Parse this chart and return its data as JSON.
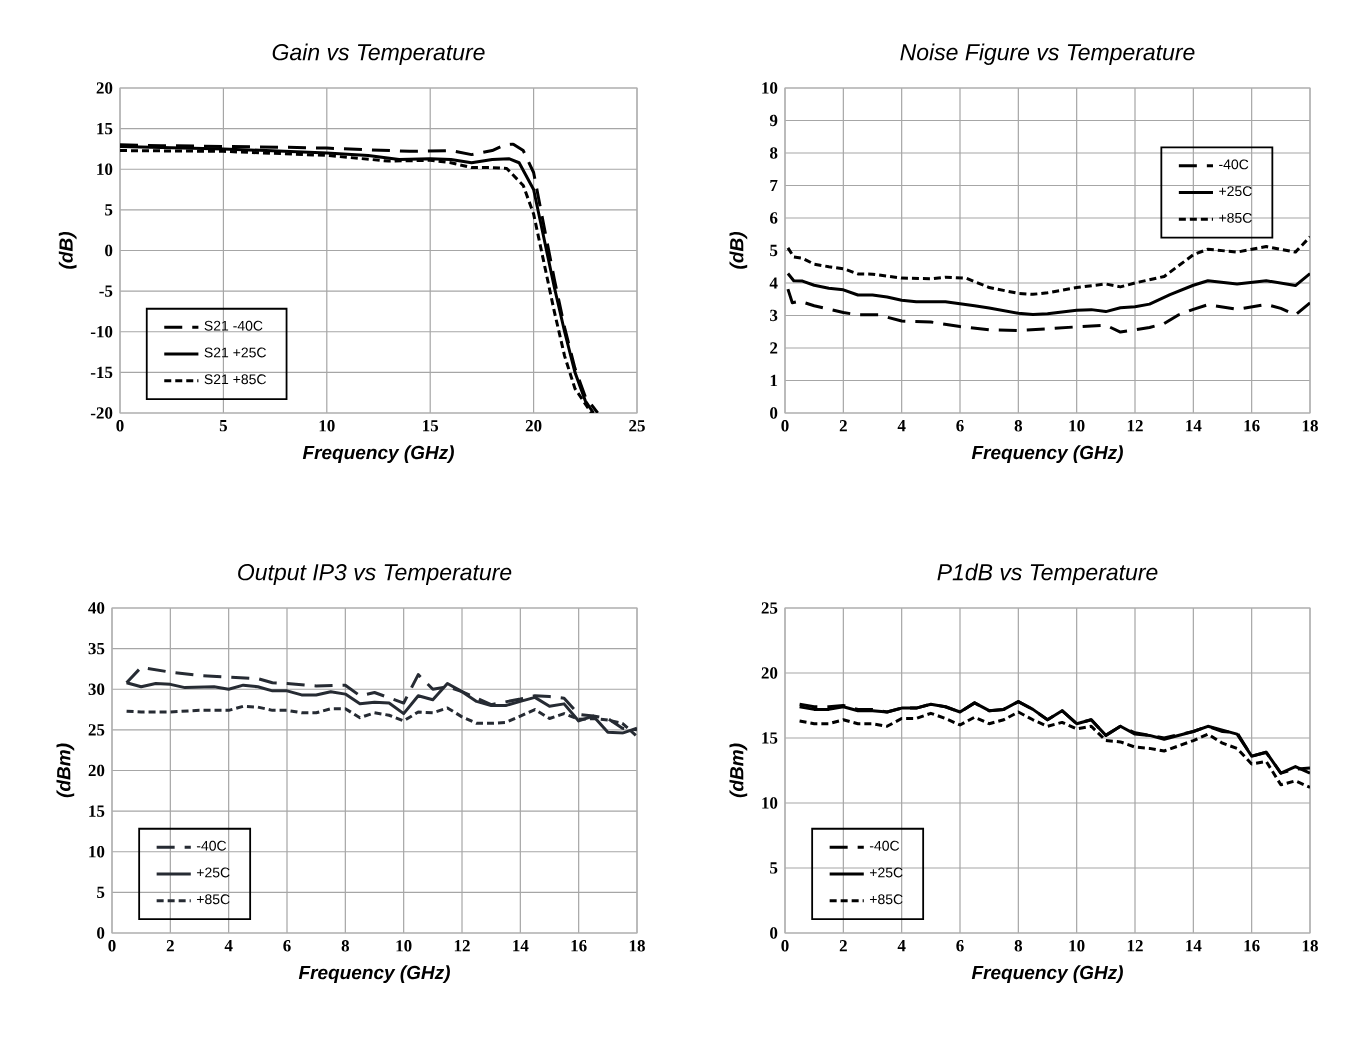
{
  "chart_data": [
    {
      "type": "line",
      "title": "Gain vs Temperature",
      "xlabel": "Frequency (GHz)",
      "ylabel": "(dB)",
      "xlim": [
        0,
        25
      ],
      "ylim": [
        -20,
        20
      ],
      "xticks": [
        0,
        5,
        10,
        15,
        20,
        25
      ],
      "yticks": [
        -20,
        -15,
        -10,
        -5,
        0,
        5,
        10,
        15,
        20
      ],
      "grid": true,
      "legend": "bottom left",
      "marker": "none",
      "series": [
        {
          "name": "S21 -40C",
          "color": "#000000",
          "line_style": "dashed",
          "x": [
            0,
            2,
            5,
            8,
            10,
            12,
            14,
            16,
            17,
            18,
            18.6,
            19,
            19.5,
            20,
            20.5,
            21,
            21.5,
            22,
            22.5,
            23.1
          ],
          "values": [
            13,
            12.9,
            12.8,
            12.7,
            12.6,
            12.4,
            12.2,
            12.3,
            11.8,
            12.3,
            13.0,
            13.1,
            12.3,
            9.6,
            3,
            -3.5,
            -9.5,
            -14.5,
            -18,
            -20
          ]
        },
        {
          "name": "S21 +25C",
          "color": "#000000",
          "line_style": "solid",
          "x": [
            0,
            5,
            10,
            12,
            13.5,
            15,
            16,
            17,
            18,
            18.8,
            19.3,
            20,
            20.5,
            21,
            21.5,
            22,
            22.5,
            22.9
          ],
          "values": [
            12.8,
            12.5,
            12.0,
            11.7,
            11.2,
            11.3,
            11.2,
            10.8,
            11.2,
            11.3,
            10.8,
            7.5,
            1.5,
            -4.5,
            -10,
            -15,
            -18.5,
            -20
          ]
        },
        {
          "name": "S21 +85C",
          "color": "#000000",
          "line_style": "dotted",
          "x": [
            0,
            5,
            10,
            13,
            15,
            16,
            17,
            18,
            18.7,
            19.5,
            20,
            20.5,
            21,
            21.5,
            22,
            22.8
          ],
          "values": [
            12.3,
            12.2,
            11.7,
            11.0,
            11.1,
            10.8,
            10.2,
            10.2,
            10.1,
            8.0,
            4.5,
            -1.5,
            -7.5,
            -13,
            -17,
            -20
          ]
        }
      ]
    },
    {
      "type": "line",
      "title": "Noise Figure vs Temperature",
      "xlabel": "Frequency (GHz)",
      "ylabel": "(dB)",
      "xlim": [
        0,
        18
      ],
      "ylim": [
        0,
        10
      ],
      "xticks": [
        0,
        2,
        4,
        6,
        8,
        10,
        12,
        14,
        16,
        18
      ],
      "yticks": [
        0,
        1,
        2,
        3,
        4,
        5,
        6,
        7,
        8,
        9,
        10
      ],
      "grid": true,
      "legend": "top right",
      "marker": "none",
      "series": [
        {
          "name": "-40C",
          "color": "#000000",
          "line_style": "dashed",
          "x": [
            0.1,
            0.25,
            0.5,
            1,
            2,
            2.5,
            3.2,
            4,
            5,
            6,
            7,
            8,
            9,
            10,
            11,
            11.5,
            12.5,
            13,
            13.5,
            14,
            14.5,
            15.5,
            16.5,
            17,
            17.5,
            18
          ],
          "values": [
            3.81,
            3.39,
            3.44,
            3.3,
            3.09,
            3.02,
            3.02,
            2.83,
            2.8,
            2.66,
            2.56,
            2.54,
            2.59,
            2.65,
            2.7,
            2.49,
            2.63,
            2.75,
            3.02,
            3.19,
            3.33,
            3.19,
            3.34,
            3.22,
            3.02,
            3.39
          ]
        },
        {
          "name": "+25C",
          "color": "#000000",
          "line_style": "solid",
          "x": [
            0.1,
            0.3,
            0.6,
            1,
            1.5,
            2,
            2.5,
            3,
            3.5,
            4,
            4.5,
            5.5,
            6.5,
            7,
            8,
            8.5,
            9,
            10,
            10.5,
            11,
            11.5,
            12,
            12.5,
            13.2,
            14,
            14.5,
            15.5,
            16.5,
            17.5,
            18
          ],
          "values": [
            4.29,
            4.07,
            4.06,
            3.93,
            3.84,
            3.79,
            3.63,
            3.63,
            3.57,
            3.47,
            3.42,
            3.42,
            3.3,
            3.23,
            3.07,
            3.03,
            3.05,
            3.16,
            3.18,
            3.12,
            3.24,
            3.27,
            3.35,
            3.64,
            3.93,
            4.07,
            3.97,
            4.07,
            3.92,
            4.29
          ]
        },
        {
          "name": "+85C",
          "color": "#000000",
          "line_style": "dotted",
          "x": [
            0.1,
            0.3,
            0.6,
            1,
            1.5,
            2,
            2.5,
            3,
            4,
            5,
            5.5,
            6.2,
            7,
            8,
            8.5,
            9,
            10,
            11,
            11.5,
            12,
            13,
            14,
            14.5,
            15.5,
            16.5,
            17.5,
            18
          ],
          "values": [
            5.08,
            4.8,
            4.76,
            4.58,
            4.5,
            4.44,
            4.28,
            4.27,
            4.15,
            4.13,
            4.18,
            4.15,
            3.86,
            3.68,
            3.65,
            3.7,
            3.86,
            3.97,
            3.88,
            4.0,
            4.2,
            4.87,
            5.04,
            4.95,
            5.12,
            4.95,
            5.42
          ]
        }
      ]
    },
    {
      "type": "line",
      "title": "Output IP3 vs Temperature",
      "xlabel": "Frequency (GHz)",
      "ylabel": "(dBm)",
      "xlim": [
        0,
        18
      ],
      "ylim": [
        0,
        40
      ],
      "xticks": [
        0,
        2,
        4,
        6,
        8,
        10,
        12,
        14,
        16,
        18
      ],
      "yticks": [
        0,
        5,
        10,
        15,
        20,
        25,
        30,
        35,
        40
      ],
      "grid": true,
      "legend": "bottom left",
      "marker": "none",
      "series": [
        {
          "name": "-40C",
          "color": "#262b33",
          "line_style": "dashed",
          "x": [
            0.5,
            1,
            2,
            3,
            4,
            5,
            5.5,
            6,
            7,
            8,
            8.5,
            9,
            10,
            10.5,
            11,
            11.5,
            12,
            13,
            14,
            14.5,
            15,
            15.5,
            16,
            16.5,
            17,
            17.5,
            18
          ],
          "values": [
            30.8,
            32.7,
            32.1,
            31.7,
            31.5,
            31.3,
            30.8,
            30.7,
            30.4,
            30.5,
            29.2,
            29.6,
            28.3,
            31.8,
            30.0,
            30.3,
            29.7,
            28.1,
            28.8,
            29.2,
            29.1,
            28.9,
            26.9,
            26.7,
            26.4,
            25.2,
            25.0
          ]
        },
        {
          "name": "+25C",
          "color": "#262b33",
          "line_style": "solid",
          "x": [
            0.5,
            1,
            1.5,
            2,
            2.5,
            3.5,
            4,
            4.5,
            5,
            5.5,
            6,
            6.5,
            7,
            7.5,
            8,
            8.5,
            9,
            9.5,
            10,
            10.5,
            11,
            11.5,
            12,
            12.5,
            13,
            13.5,
            14,
            14.5,
            15,
            15.5,
            16,
            16.5,
            17,
            17.5,
            18
          ],
          "values": [
            30.8,
            30.3,
            30.7,
            30.6,
            30.2,
            30.3,
            30.0,
            30.5,
            30.3,
            29.8,
            29.8,
            29.3,
            29.3,
            29.7,
            29.4,
            28.2,
            28.4,
            28.3,
            27.0,
            29.2,
            28.7,
            30.7,
            29.7,
            28.5,
            28.0,
            28.0,
            28.5,
            29.0,
            27.9,
            28.2,
            26.1,
            26.7,
            24.7,
            24.6,
            25.2
          ]
        },
        {
          "name": "+85C",
          "color": "#262b33",
          "line_style": "dotted",
          "x": [
            0.5,
            1,
            2,
            3,
            4,
            4.5,
            5,
            5.5,
            6,
            6.5,
            7,
            7.5,
            8,
            8.5,
            9,
            9.5,
            10,
            10.5,
            11,
            11.5,
            12,
            12.5,
            13,
            13.5,
            14,
            14.5,
            15,
            15.5,
            16,
            16.5,
            17,
            17.5,
            18
          ],
          "values": [
            27.3,
            27.2,
            27.2,
            27.4,
            27.4,
            27.9,
            27.8,
            27.4,
            27.4,
            27.1,
            27.1,
            27.6,
            27.6,
            26.5,
            27.1,
            26.8,
            26.1,
            27.2,
            27.1,
            27.7,
            26.6,
            25.8,
            25.8,
            25.9,
            26.7,
            27.5,
            26.4,
            27.0,
            26.3,
            26.4,
            26.2,
            25.8,
            24.2
          ]
        }
      ]
    },
    {
      "type": "line",
      "title": "P1dB vs Temperature",
      "xlabel": "Frequency (GHz)",
      "ylabel": "(dBm)",
      "xlim": [
        0,
        18
      ],
      "ylim": [
        0,
        25
      ],
      "xticks": [
        0,
        2,
        4,
        6,
        8,
        10,
        12,
        14,
        16,
        18
      ],
      "yticks": [
        0,
        5,
        10,
        15,
        20,
        25
      ],
      "grid": true,
      "legend": "bottom left",
      "marker": "none",
      "series": [
        {
          "name": "-40C",
          "color": "#000000",
          "line_style": "dashed",
          "x": [
            0.5,
            1,
            1.5,
            2,
            2.5,
            3,
            3.5,
            4,
            4.5,
            5,
            5.5,
            6,
            6.5,
            7,
            7.5,
            8,
            8.5,
            9,
            9.5,
            10,
            10.5,
            11,
            11.5,
            12,
            12.5,
            13,
            14,
            14.5,
            15,
            15.5,
            16,
            16.5,
            17,
            17.5,
            18
          ],
          "values": [
            17.6,
            17.4,
            17.4,
            17.5,
            17.2,
            17.2,
            17.0,
            17.3,
            17.3,
            17.6,
            17.4,
            17.0,
            17.7,
            17.1,
            17.2,
            17.8,
            17.2,
            16.4,
            17.1,
            16.1,
            16.4,
            15.2,
            15.9,
            15.4,
            15.2,
            15.0,
            15.5,
            15.9,
            15.5,
            15.4,
            13.6,
            13.9,
            12.3,
            12.6,
            12.7
          ]
        },
        {
          "name": "+25C",
          "color": "#000000",
          "line_style": "solid",
          "x": [
            0.5,
            1,
            1.5,
            2,
            2.5,
            3,
            3.5,
            4,
            4.5,
            5,
            5.5,
            6,
            6.5,
            7,
            7.5,
            8,
            8.5,
            9,
            9.5,
            10,
            10.5,
            11,
            11.5,
            12,
            12.5,
            13,
            14,
            14.5,
            15,
            15.5,
            16,
            16.5,
            17,
            17.5,
            18
          ],
          "values": [
            17.4,
            17.2,
            17.2,
            17.4,
            17.1,
            17.1,
            17.0,
            17.3,
            17.3,
            17.6,
            17.4,
            17.0,
            17.7,
            17.1,
            17.2,
            17.8,
            17.2,
            16.4,
            17.1,
            16.1,
            16.4,
            15.2,
            15.9,
            15.3,
            15.2,
            14.9,
            15.5,
            15.9,
            15.6,
            15.3,
            13.6,
            13.9,
            12.3,
            12.8,
            12.3
          ]
        },
        {
          "name": "+85C",
          "color": "#000000",
          "line_style": "dotted",
          "x": [
            0.5,
            1,
            1.5,
            2,
            2.5,
            3,
            3.5,
            4,
            4.5,
            5,
            5.5,
            6,
            6.5,
            7,
            7.5,
            8,
            8.5,
            9,
            9.5,
            10,
            10.5,
            11,
            11.5,
            12,
            12.5,
            13,
            14,
            14.5,
            15,
            15.5,
            16,
            16.5,
            17,
            17.5,
            18
          ],
          "values": [
            16.3,
            16.1,
            16.1,
            16.4,
            16.1,
            16.1,
            15.9,
            16.5,
            16.5,
            16.9,
            16.5,
            16.0,
            16.6,
            16.1,
            16.4,
            17.0,
            16.4,
            15.9,
            16.2,
            15.7,
            15.9,
            14.8,
            14.7,
            14.3,
            14.2,
            14.0,
            14.8,
            15.3,
            14.6,
            14.2,
            13.0,
            13.2,
            11.4,
            11.7,
            11.2
          ]
        }
      ]
    }
  ]
}
